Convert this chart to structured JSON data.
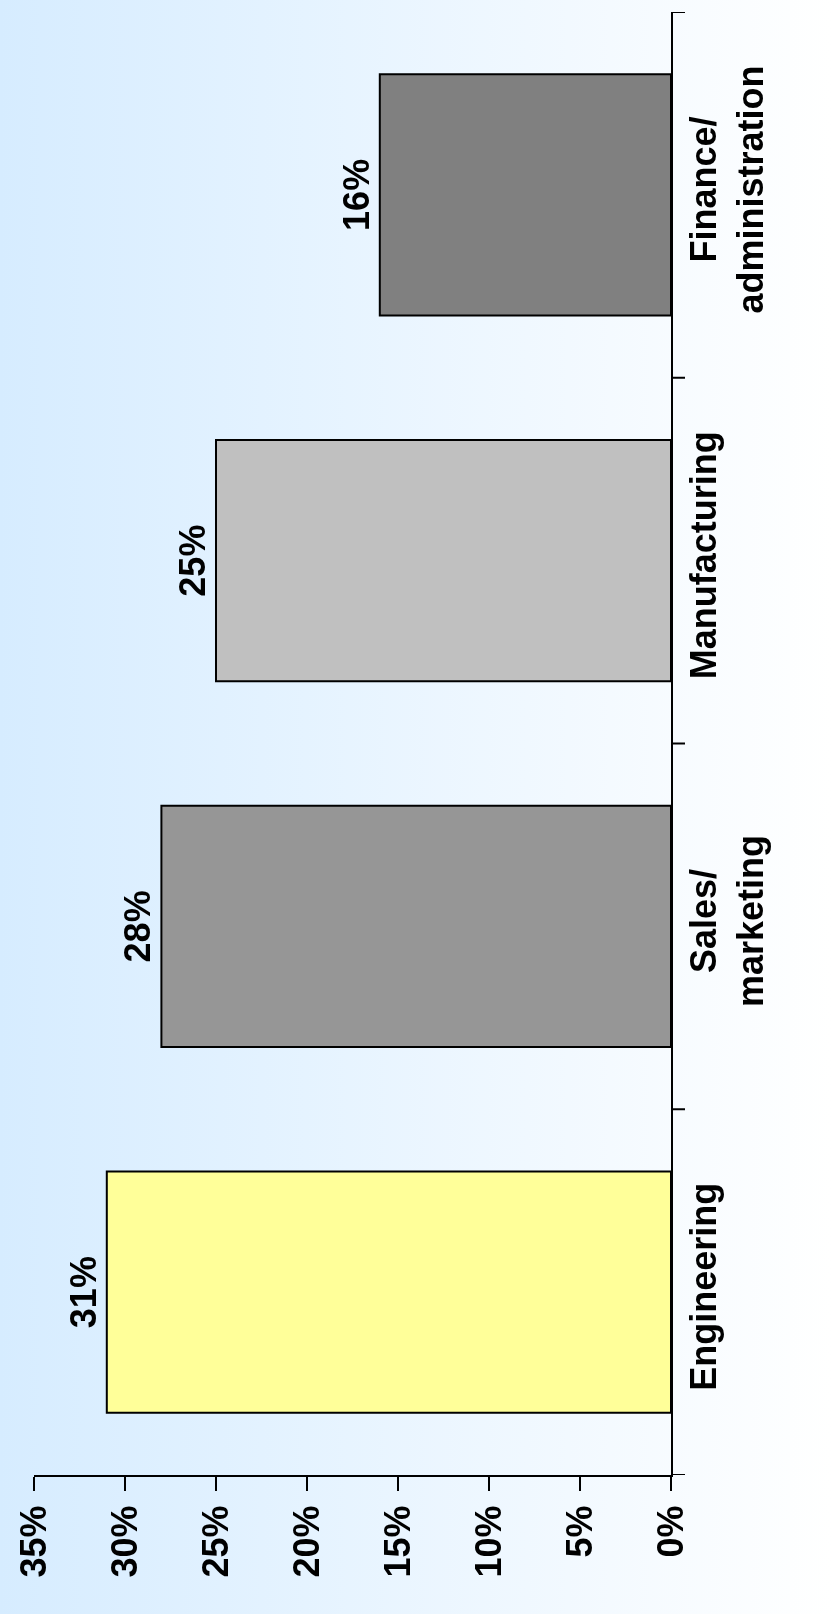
{
  "chart_data": {
    "type": "bar",
    "orientation": "horizontal",
    "categories": [
      "Finance/\nadministration",
      "Manufacturing",
      "Sales/\nmarketing",
      "Engineering"
    ],
    "values": [
      16,
      25,
      28,
      31
    ],
    "colors": [
      "#808080",
      "#c0c0c0",
      "#969696",
      "#ffff99"
    ],
    "value_labels": [
      "16%",
      "25%",
      "28%",
      "31%"
    ],
    "xlim": [
      35,
      0
    ],
    "xticks": [
      {
        "value": 0,
        "label": "0%"
      },
      {
        "value": 5,
        "label": "5%"
      },
      {
        "value": 10,
        "label": "10%"
      },
      {
        "value": 15,
        "label": "15%"
      },
      {
        "value": 20,
        "label": "20%"
      },
      {
        "value": 25,
        "label": "25%"
      },
      {
        "value": 30,
        "label": "30%"
      },
      {
        "value": 35,
        "label": "35%"
      }
    ],
    "data_labels": false
  }
}
